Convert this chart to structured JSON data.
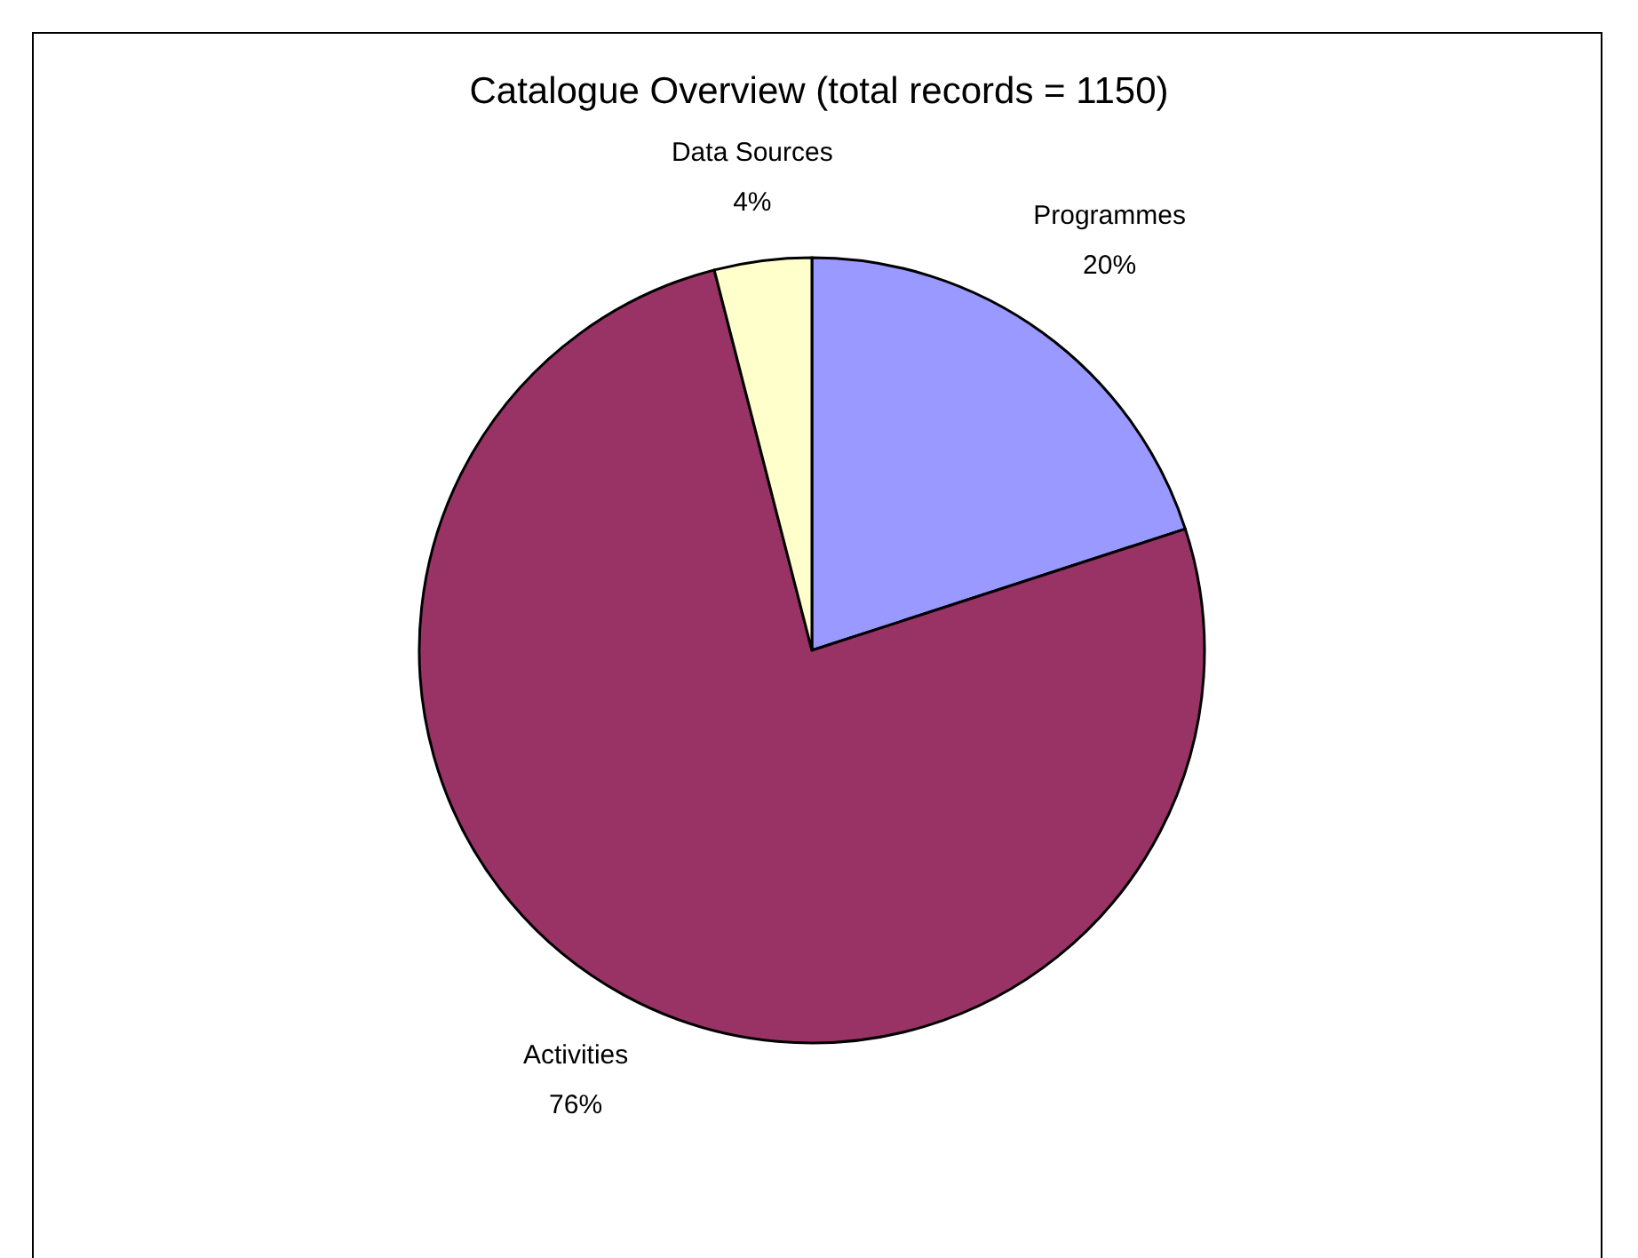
{
  "chart_data": {
    "type": "pie",
    "title": "Catalogue Overview (total records = 1150)",
    "categories": [
      "Programmes",
      "Activities",
      "Data Sources"
    ],
    "values": [
      20,
      76,
      4
    ],
    "colors": [
      "#9999ff",
      "#993366",
      "#ffffcc"
    ],
    "value_labels": [
      "20%",
      "76%",
      "4%"
    ],
    "legend": false
  }
}
